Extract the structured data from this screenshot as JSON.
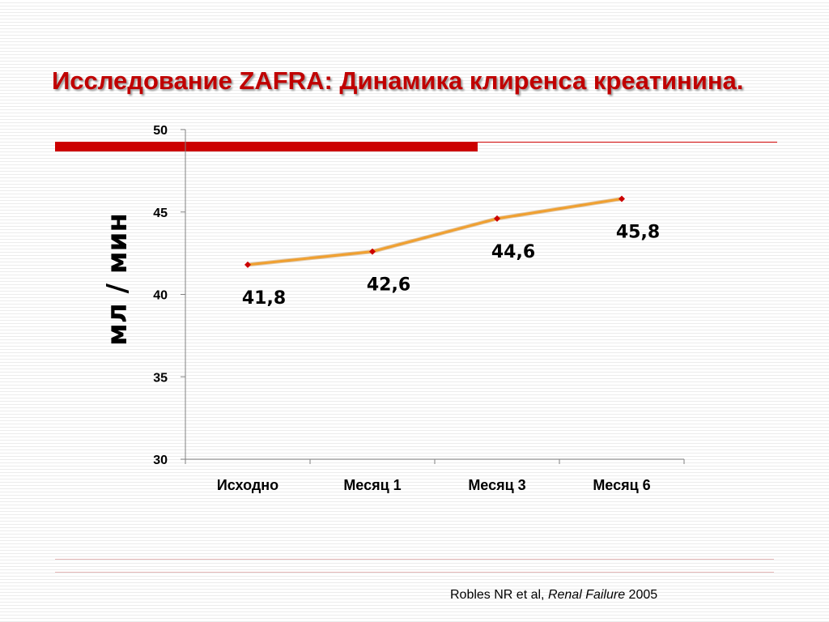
{
  "title": "Исследование ZAFRA: Динамика клиренса креатинина.",
  "chart_data": {
    "type": "line",
    "title": "",
    "xlabel": "",
    "ylabel": "мл / мин",
    "categories": [
      "Исходно",
      "Месяц 1",
      "Месяц 3",
      "Месяц 6"
    ],
    "values": [
      41.8,
      42.6,
      44.6,
      45.8
    ],
    "data_labels": [
      "41,8",
      "42,6",
      "44,6",
      "45,8"
    ],
    "ylim": [
      30,
      50
    ],
    "yticks": [
      30,
      35,
      40,
      45,
      50
    ],
    "grid": false,
    "legend": "none",
    "line_color": "#f0a030",
    "marker_color": "#cc0000"
  },
  "source": {
    "authors": "Robles NR et al, ",
    "journal": "Renal Failure",
    "year": " 2005"
  }
}
